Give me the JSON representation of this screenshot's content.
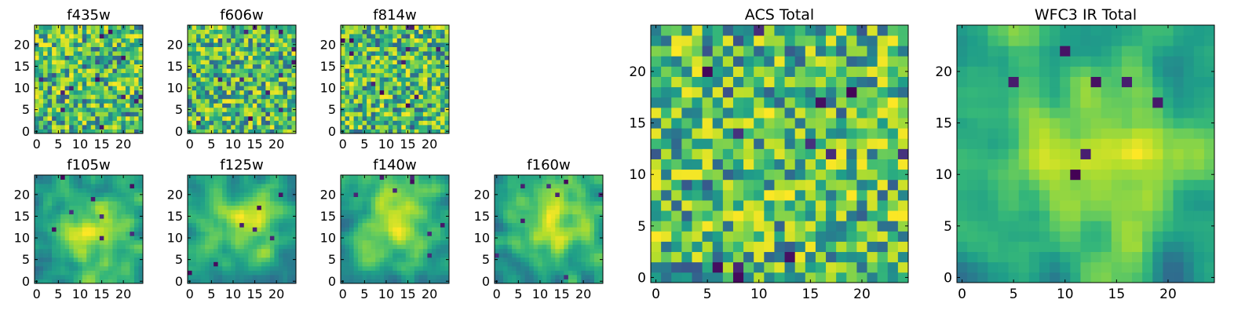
{
  "chart_data": [
    {
      "type": "heatmap",
      "title": "f435w",
      "seed": 11,
      "mode": "noise",
      "xticks": [
        0,
        5,
        10,
        15,
        20
      ],
      "yticks": [
        0,
        5,
        10,
        15,
        20
      ],
      "grid_size": [
        25,
        25
      ],
      "xlim": [
        -0.5,
        24.5
      ],
      "ylim": [
        -0.5,
        24.5
      ],
      "colormap": "viridis"
    },
    {
      "type": "heatmap",
      "title": "f606w",
      "seed": 23,
      "mode": "noise",
      "xticks": [
        0,
        5,
        10,
        15,
        20
      ],
      "yticks": [
        0,
        5,
        10,
        15,
        20
      ],
      "grid_size": [
        25,
        25
      ],
      "xlim": [
        -0.5,
        24.5
      ],
      "ylim": [
        -0.5,
        24.5
      ],
      "colormap": "viridis"
    },
    {
      "type": "heatmap",
      "title": "f814w",
      "seed": 37,
      "mode": "noise",
      "xticks": [
        0,
        5,
        10,
        15,
        20
      ],
      "yticks": [
        0,
        5,
        10,
        15,
        20
      ],
      "grid_size": [
        25,
        25
      ],
      "xlim": [
        -0.5,
        24.5
      ],
      "ylim": [
        -0.5,
        24.5
      ],
      "colormap": "viridis"
    },
    {
      "type": "heatmap",
      "title": "f105w",
      "seed": 41,
      "mode": "smooth",
      "xticks": [
        0,
        5,
        10,
        15,
        20
      ],
      "yticks": [
        0,
        5,
        10,
        15,
        20
      ],
      "grid_size": [
        25,
        25
      ],
      "xlim": [
        -0.5,
        24.5
      ],
      "ylim": [
        -0.5,
        24.5
      ],
      "colormap": "viridis"
    },
    {
      "type": "heatmap",
      "title": "f125w",
      "seed": 53,
      "mode": "smooth",
      "xticks": [
        0,
        5,
        10,
        15,
        20
      ],
      "yticks": [
        0,
        5,
        10,
        15,
        20
      ],
      "grid_size": [
        25,
        25
      ],
      "xlim": [
        -0.5,
        24.5
      ],
      "ylim": [
        -0.5,
        24.5
      ],
      "colormap": "viridis"
    },
    {
      "type": "heatmap",
      "title": "f140w",
      "seed": 67,
      "mode": "smooth",
      "xticks": [
        0,
        5,
        10,
        15,
        20
      ],
      "yticks": [
        0,
        5,
        10,
        15,
        20
      ],
      "grid_size": [
        25,
        25
      ],
      "xlim": [
        -0.5,
        24.5
      ],
      "ylim": [
        -0.5,
        24.5
      ],
      "colormap": "viridis"
    },
    {
      "type": "heatmap",
      "title": "f160w",
      "seed": 79,
      "mode": "smooth",
      "xticks": [
        0,
        5,
        10,
        15,
        20
      ],
      "yticks": [
        0,
        5,
        10,
        15,
        20
      ],
      "grid_size": [
        25,
        25
      ],
      "xlim": [
        -0.5,
        24.5
      ],
      "ylim": [
        -0.5,
        24.5
      ],
      "colormap": "viridis"
    },
    {
      "type": "heatmap",
      "title": "ACS Total",
      "seed": 97,
      "mode": "noise",
      "xticks": [
        0,
        5,
        10,
        15,
        20
      ],
      "yticks": [
        0,
        5,
        10,
        15,
        20
      ],
      "grid_size": [
        25,
        25
      ],
      "xlim": [
        -0.5,
        24.5
      ],
      "ylim": [
        -0.5,
        24.5
      ],
      "colormap": "viridis"
    },
    {
      "type": "heatmap",
      "title": "WFC3 IR Total",
      "seed": 131,
      "mode": "smooth",
      "xticks": [
        0,
        5,
        10,
        15,
        20
      ],
      "yticks": [
        0,
        5,
        10,
        15,
        20
      ],
      "grid_size": [
        25,
        25
      ],
      "xlim": [
        -0.5,
        24.5
      ],
      "ylim": [
        -0.5,
        24.5
      ],
      "colormap": "viridis"
    }
  ]
}
